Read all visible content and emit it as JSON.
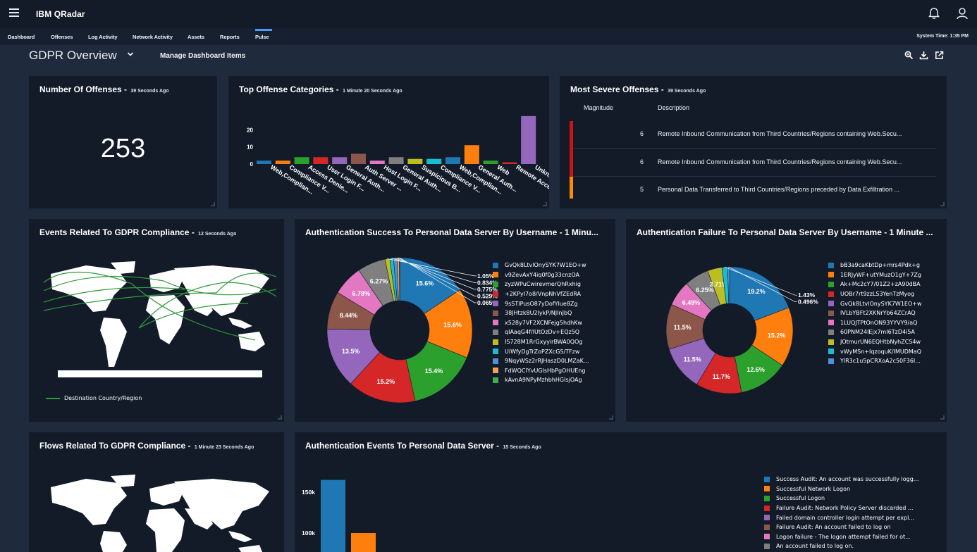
{
  "app": {
    "brand": "IBM QRadar"
  },
  "nav": {
    "tabs": [
      {
        "label": "Dashboard"
      },
      {
        "label": "Offenses"
      },
      {
        "label": "Log Activity"
      },
      {
        "label": "Network Activity"
      },
      {
        "label": "Assets"
      },
      {
        "label": "Reports"
      },
      {
        "label": "Pulse",
        "active": true
      }
    ],
    "system_time": "System Time: 1:35 PM"
  },
  "dashboard": {
    "title": "GDPR Overview",
    "manage_label": "Manage Dashboard Items",
    "tools": [
      "search-zoom-icon",
      "download-icon",
      "open-external-icon"
    ]
  },
  "colors": {
    "accent": "#4c9bff",
    "palette": [
      "#1f77b4",
      "#ff7f0e",
      "#2ca02c",
      "#d62728",
      "#9467bd",
      "#8c564b",
      "#e377c2",
      "#7f7f7f",
      "#bcbd22",
      "#17becf",
      "#4e91d9",
      "#f1a15a",
      "#3db04c"
    ]
  },
  "cards": {
    "offenses": {
      "title": "Number Of Offenses - ",
      "age": "39 Seconds Ago",
      "value": "253"
    },
    "categories": {
      "title": "Top Offense Categories - ",
      "age": "1 Minute 20 Seconds Ago"
    },
    "severe": {
      "title": "Most Severe Offenses - ",
      "age": "39 Seconds Ago",
      "col_magnitude": "Magnitude",
      "col_description": "Description",
      "rows": [
        {
          "magnitude": "6",
          "description": "Remote Inbound Communication from Third Countries/Regions containing Web.Secu...",
          "color": "#cc1414"
        },
        {
          "magnitude": "6",
          "description": "Remote Inbound Communication from Third Countries/Regions containing Web.Secu...",
          "color": "#cc1414"
        },
        {
          "magnitude": "5",
          "description": "Personal Data Transferred to Third Countries/Regions preceded by Data Exfiltration ...",
          "color": "#ff8a00"
        }
      ]
    },
    "events_gdpr": {
      "title": "Events Related To GDPR Compliance - ",
      "age": "12 Seconds Ago",
      "legend": "Destination Country/Region"
    },
    "auth_success": {
      "title": "Authentication Success To Personal Data Server By Username - 1 Minu..."
    },
    "auth_failure": {
      "title": "Authentication Failure To Personal Data Server By Username - 1 Minute ..."
    },
    "flows_gdpr": {
      "title": "Flows Related To GDPR Compliance - ",
      "age": "1 Minute 23 Seconds Ago"
    },
    "auth_events": {
      "title": "Authentication Events To Personal Data Server - ",
      "age": "15 Seconds Ago"
    }
  },
  "chart_data": [
    {
      "id": "categories",
      "type": "bar",
      "ylim": [
        0,
        30
      ],
      "yticks": [
        "0",
        "10",
        "20"
      ],
      "categories": [
        "Web,Complian...",
        "Compliance V...",
        "Access Denie...",
        "User Login F...",
        "General Auth...",
        "Auth Server ...",
        "Host Login F...",
        "General Auth...",
        "Suspicious B...",
        "Compliance V...",
        "Web,Complian...",
        "General Auth...",
        "Web",
        "Remote Acce...",
        "Unkn..."
      ],
      "values": [
        2,
        2,
        4,
        4,
        4,
        6,
        2,
        4,
        3,
        3,
        4,
        11,
        2,
        1,
        28
      ],
      "colors": [
        "#1f77b4",
        "#ff7f0e",
        "#2ca02c",
        "#d62728",
        "#9467bd",
        "#8c564b",
        "#e377c2",
        "#7f7f7f",
        "#bcbd22",
        "#17becf",
        "#1f77b4",
        "#ff7f0e",
        "#2ca02c",
        "#d62728",
        "#9467bd"
      ]
    },
    {
      "id": "auth_success",
      "type": "pie",
      "labels": [
        "GvQk8LtvlOnySYK7W1EO+w",
        "v9ZevAxY4iq0f0g33cnzOA",
        "zyzWPuCwirevmerQhRxhig",
        "+2KPyI7o8/VnpNhVfZEdRA",
        "9sSTIPusO87yDofYIue8Zg",
        "38JHtzk8U2IykP/NJInJbQ",
        "x528y7VF2XCNFejg5hdhKw",
        "qIAaqG4f/IUtOzDv+EQz5Q",
        "IS728M1RrGxyyirBWA0QOg",
        "UiWfyDgTrZoPZXcGS/TFzw",
        "9NqyWSz2rRJHaszD0LMZaK...",
        "FdWQCIYvUGIsHbPgOHUEng",
        "kAvnA9NPyMzhbhHGIsjOAg"
      ],
      "values": [
        15.6,
        15.6,
        15.4,
        15.2,
        13.5,
        8.44,
        6.78,
        6.27,
        1.05,
        0.834,
        0.775,
        0.529,
        0.065
      ],
      "display": [
        "15.6%",
        "15.6%",
        "15.4%",
        "15.2%",
        "13.5%",
        "8.44%",
        "6.78%",
        "6.27%",
        "1.05%",
        "0.834%",
        "0.775%",
        "0.529%",
        "0.065%"
      ],
      "slice_colors": [
        "#1f77b4",
        "#ff7f0e",
        "#2ca02c",
        "#d62728",
        "#9467bd",
        "#8c564b",
        "#e377c2",
        "#7f7f7f",
        "#bcbd22",
        "#17becf",
        "#4e91d9",
        "#f1a15a",
        "#3db04c"
      ]
    },
    {
      "id": "auth_failure",
      "type": "pie",
      "labels": [
        "bB3a9caKbtDp+mrs4Pdk+g",
        "1ERJyWF+utYMuzO1gY+7Zg",
        "Ak+Mc2cY7/01Z2+zA90dBA",
        "UOBr7rt9zzLS3YenTzMyog",
        "GvQk8LtvlOnySYK7W1EO+w",
        "IVLbYBFt2XKNrYb64ZCrAQ",
        "1LUQJTPtOnON93YYVY9/aQ",
        "60PNM24IEjx7mI6TzD4i5A",
        "JOtmurUN6EQHtbNyhZCS4w",
        "vWyMSn+IqzoquK/IMUDMaQ",
        "YlR3c1u5pCRXoA2c50F36I..."
      ],
      "values": [
        19.2,
        15.2,
        12.6,
        11.7,
        11.5,
        11.5,
        6.49,
        6.25,
        3.71,
        1.43,
        0.496
      ],
      "display": [
        "19.2%",
        "15.2%",
        "12.6%",
        "11.7%",
        "11.5%",
        "11.5%",
        "6.49%",
        "6.25%",
        "3.71%",
        "1.43%",
        "0.496%"
      ],
      "slice_colors": [
        "#1f77b4",
        "#ff7f0e",
        "#2ca02c",
        "#d62728",
        "#9467bd",
        "#8c564b",
        "#e377c2",
        "#7f7f7f",
        "#bcbd22",
        "#17becf",
        "#4e91d9"
      ]
    },
    {
      "id": "auth_events",
      "type": "bar",
      "ylim": [
        0,
        180000
      ],
      "yticks": [
        "150k",
        "100k"
      ],
      "series": [
        {
          "name": "Success Audit: An account was successfully logg...",
          "value": 165000,
          "color": "#1f77b4"
        },
        {
          "name": "Successful Network Logon",
          "value": 100000,
          "color": "#ff7f0e"
        },
        {
          "name": "Successful Logon",
          "color": "#2ca02c"
        },
        {
          "name": "Failure Audit: Network Policy Server discarded ...",
          "color": "#d62728"
        },
        {
          "name": "Failed domain controller login attempt per expl...",
          "color": "#9467bd"
        },
        {
          "name": "Failure Audit: An account failed to log on",
          "color": "#8c564b"
        },
        {
          "name": "Logon failure - The logon attempt failed for ot...",
          "color": "#e377c2"
        },
        {
          "name": "An account failed to log on.",
          "color": "#7f7f7f"
        }
      ]
    }
  ]
}
